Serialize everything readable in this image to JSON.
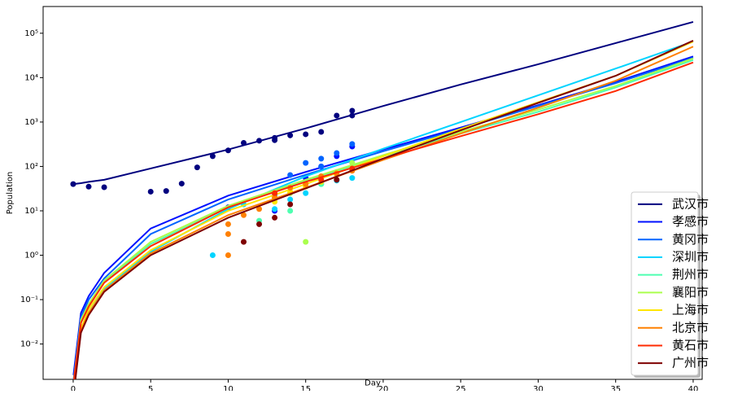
{
  "chart_data": {
    "type": "line",
    "xlabel": "Day",
    "ylabel": "Population",
    "xlim": [
      -1.94,
      40.58
    ],
    "xticks": [
      0,
      5,
      10,
      15,
      20,
      25,
      30,
      35,
      40
    ],
    "yscale": "log",
    "ylim": [
      0.0016,
      400000
    ],
    "yticks": [
      {
        "value": 0.01,
        "label": "10⁻²"
      },
      {
        "value": 0.1,
        "label": "10⁻¹"
      },
      {
        "value": 1,
        "label": "10⁰"
      },
      {
        "value": 10,
        "label": "10¹"
      },
      {
        "value": 100,
        "label": "10²"
      },
      {
        "value": 1000,
        "label": "10³"
      },
      {
        "value": 10000,
        "label": "10⁴"
      },
      {
        "value": 100000,
        "label": "10⁵"
      }
    ],
    "legend": "lower right",
    "x": [
      0.02,
      0.5,
      1,
      2,
      5,
      10,
      15,
      20,
      25,
      30,
      35,
      40
    ],
    "series": [
      {
        "name": "武汉市",
        "color": "#00007f",
        "values": [
          40,
          42,
          45,
          50,
          90,
          240,
          720,
          2300,
          7000,
          20000,
          60000,
          180000
        ],
        "scatter": {
          "x": [
            0,
            1,
            2,
            5,
            6,
            7,
            8,
            9,
            10,
            11,
            12,
            13,
            13,
            14,
            15,
            16,
            17,
            18,
            18
          ],
          "values": [
            40,
            35,
            34,
            27,
            28,
            41,
            95,
            170,
            230,
            340,
            380,
            440,
            390,
            500,
            530,
            600,
            1400,
            1800,
            1400
          ]
        }
      },
      {
        "name": "孝感市",
        "color": "#0010ff",
        "values": [
          0.002,
          0.05,
          0.12,
          0.4,
          4,
          22,
          75,
          240,
          750,
          2400,
          8000,
          30000
        ],
        "scatter": {
          "x": [
            10,
            13,
            15,
            16,
            17,
            18
          ],
          "values": [
            12,
            10,
            55,
            100,
            170,
            280
          ]
        }
      },
      {
        "name": "黄冈市",
        "color": "#0064ff",
        "values": [
          0.0015,
          0.04,
          0.1,
          0.3,
          3,
          18,
          65,
          220,
          700,
          2300,
          7500,
          28000
        ],
        "scatter": {
          "x": [
            13,
            14,
            15,
            16,
            16,
            17,
            18
          ],
          "values": [
            23,
            64,
            120,
            150,
            100,
            200,
            320
          ]
        }
      },
      {
        "name": "深圳市",
        "color": "#00d4ff",
        "values": [
          0.0008,
          0.02,
          0.05,
          0.17,
          1.2,
          11,
          60,
          250,
          1000,
          4000,
          16000,
          65000
        ],
        "scatter": {
          "x": [
            9,
            11,
            13,
            14,
            15,
            16,
            17,
            18
          ],
          "values": [
            1,
            14,
            11,
            18,
            25,
            40,
            48,
            55
          ]
        }
      },
      {
        "name": "荆州市",
        "color": "#4dffb0",
        "values": [
          0.0012,
          0.03,
          0.07,
          0.25,
          1.8,
          12,
          48,
          170,
          550,
          1700,
          6000,
          25000
        ],
        "scatter": {
          "x": [
            12,
            14,
            16,
            17
          ],
          "values": [
            6,
            10,
            40,
            70
          ]
        }
      },
      {
        "name": "襄阳市",
        "color": "#aaff4d",
        "values": [
          0.0013,
          0.035,
          0.08,
          0.27,
          2,
          13,
          50,
          180,
          600,
          1900,
          6500,
          27000
        ],
        "scatter": {
          "x": [
            13,
            14,
            15,
            16,
            17,
            18
          ],
          "values": [
            19,
            25,
            2,
            55,
            75,
            120
          ]
        }
      },
      {
        "name": "上海市",
        "color": "#ffe600",
        "values": [
          0.0009,
          0.022,
          0.06,
          0.19,
          1.3,
          10,
          40,
          170,
          700,
          2800,
          11000,
          65000
        ],
        "scatter": {
          "x": [
            13,
            14,
            15,
            16,
            17,
            18
          ],
          "values": [
            16,
            27,
            35,
            45,
            65,
            90
          ]
        }
      },
      {
        "name": "北京市",
        "color": "#ff8000",
        "values": [
          0.0008,
          0.02,
          0.05,
          0.16,
          1.1,
          8,
          33,
          140,
          550,
          2100,
          8500,
          50000
        ],
        "scatter": {
          "x": [
            10,
            10,
            10,
            11,
            12,
            13,
            14,
            15,
            16,
            17,
            18
          ],
          "values": [
            1,
            3,
            5,
            8,
            11,
            20,
            33,
            40,
            60,
            70,
            80
          ]
        }
      },
      {
        "name": "黄石市",
        "color": "#ff2a00",
        "values": [
          0.0013,
          0.03,
          0.07,
          0.24,
          1.6,
          12,
          45,
          150,
          480,
          1500,
          5000,
          22000
        ],
        "scatter": {
          "x": [
            13,
            16,
            18
          ],
          "values": [
            25,
            50,
            90
          ]
        }
      },
      {
        "name": "广州市",
        "color": "#7f0000",
        "values": [
          0.0007,
          0.018,
          0.045,
          0.15,
          1,
          7,
          32,
          150,
          650,
          2700,
          11000,
          68000
        ],
        "scatter": {
          "x": [
            11,
            12,
            13,
            14,
            17
          ],
          "values": [
            2,
            5,
            7,
            14,
            50
          ]
        }
      }
    ]
  }
}
